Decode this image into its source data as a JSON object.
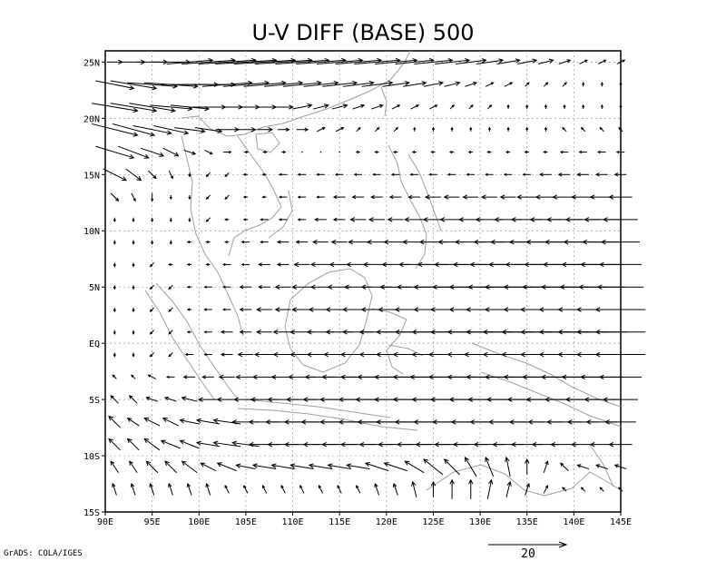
{
  "chart_data": {
    "type": "vector-field",
    "title": "U-V DIFF (BASE) 500",
    "x_axis": {
      "range": [
        90,
        145
      ],
      "ticks": [
        90,
        95,
        100,
        105,
        110,
        115,
        120,
        125,
        130,
        135,
        140,
        145
      ],
      "tick_labels": [
        "90E",
        "95E",
        "100E",
        "105E",
        "110E",
        "115E",
        "120E",
        "125E",
        "130E",
        "135E",
        "140E",
        "145E"
      ]
    },
    "y_axis": {
      "range": [
        -15,
        26
      ],
      "ticks": [
        -15,
        -10,
        -5,
        0,
        5,
        10,
        15,
        20,
        25
      ],
      "tick_labels": [
        "15S",
        "10S",
        "5S",
        "EQ",
        "5N",
        "10N",
        "15N",
        "20N",
        "25N"
      ]
    },
    "grid": true,
    "reference_vector": {
      "magnitude": 20,
      "label": "20"
    },
    "footer": "GrADS: COLA/IGES",
    "vectors_description": "Wind difference vectors on a 2° grid: strong westward flow south of ~15N (strongest east of 125E between 10N and 5S), weak flow over the Malay peninsula and Sumatra, strong eastward/northeastward flow north of 20N, southward/northwestward turning near 10S-15S.",
    "vector_rows": [
      {
        "lat": 25,
        "u": [
          4,
          6,
          8,
          10,
          12,
          14,
          15,
          16,
          16,
          15,
          14,
          13,
          12,
          12,
          12,
          11,
          10,
          10,
          9,
          8,
          7,
          6,
          5,
          4,
          3,
          2,
          2,
          2
        ],
        "v": [
          0,
          0,
          0,
          0,
          1,
          1,
          1,
          1,
          1,
          1,
          1,
          1,
          1,
          1,
          1,
          1,
          1,
          1,
          1,
          1,
          1,
          1,
          1,
          1,
          1,
          1,
          1,
          1
        ]
      },
      {
        "lat": 23,
        "u": [
          10,
          12,
          13,
          14,
          15,
          14,
          13,
          12,
          11,
          10,
          10,
          9,
          9,
          8,
          8,
          7,
          6,
          5,
          4,
          3,
          2,
          2,
          1,
          1,
          1,
          0,
          0,
          0
        ],
        "v": [
          -2,
          -2,
          -1,
          -1,
          0,
          0,
          1,
          1,
          1,
          1,
          1,
          1,
          1,
          1,
          1,
          1,
          1,
          1,
          1,
          1,
          1,
          1,
          1,
          1,
          1,
          1,
          1,
          1
        ]
      },
      {
        "lat": 21,
        "u": [
          12,
          12,
          12,
          11,
          10,
          9,
          8,
          7,
          6,
          5,
          5,
          4,
          4,
          3,
          3,
          2,
          2,
          2,
          1,
          1,
          1,
          0,
          0,
          0,
          0,
          0,
          0,
          0
        ],
        "v": [
          -2,
          -2,
          -2,
          -1,
          -1,
          0,
          0,
          0,
          0,
          0,
          1,
          1,
          1,
          1,
          1,
          1,
          1,
          1,
          1,
          1,
          1,
          1,
          1,
          1,
          1,
          1,
          1,
          1
        ]
      },
      {
        "lat": 19,
        "u": [
          12,
          11,
          10,
          9,
          8,
          7,
          6,
          5,
          4,
          3,
          3,
          2,
          2,
          1,
          1,
          1,
          0,
          0,
          0,
          0,
          0,
          0,
          0,
          0,
          -1,
          -1,
          -1,
          -1
        ],
        "v": [
          -3,
          -3,
          -2,
          -2,
          -1,
          -1,
          0,
          0,
          0,
          0,
          0,
          1,
          1,
          1,
          1,
          1,
          1,
          1,
          1,
          1,
          1,
          1,
          1,
          1,
          1,
          1,
          1,
          1
        ]
      },
      {
        "lat": 17,
        "u": [
          10,
          8,
          6,
          4,
          3,
          2,
          2,
          1,
          1,
          1,
          0,
          0,
          0,
          -1,
          -1,
          -1,
          -1,
          -1,
          -1,
          -1,
          -1,
          -1,
          -1,
          -1,
          -2,
          -2,
          -2,
          -2
        ],
        "v": [
          -3,
          -3,
          -2,
          -2,
          -1,
          -1,
          0,
          0,
          0,
          0,
          0,
          0,
          0,
          0,
          0,
          0,
          0,
          0,
          0,
          0,
          0,
          0,
          0,
          0,
          0,
          0,
          0,
          0
        ]
      },
      {
        "lat": 15,
        "u": [
          6,
          4,
          2,
          1,
          0,
          -1,
          -1,
          -1,
          -1,
          -2,
          -2,
          -2,
          -2,
          -2,
          -2,
          -2,
          -2,
          -2,
          -2,
          -2,
          -2,
          -2,
          -2,
          -3,
          -3,
          -3,
          -3,
          -3
        ],
        "v": [
          -3,
          -3,
          -2,
          -2,
          -1,
          -1,
          -1,
          0,
          0,
          0,
          0,
          0,
          0,
          0,
          0,
          0,
          0,
          0,
          0,
          0,
          0,
          0,
          0,
          0,
          0,
          0,
          0,
          0
        ]
      },
      {
        "lat": 13,
        "u": [
          2,
          1,
          0,
          0,
          0,
          -1,
          -1,
          -1,
          -1,
          -2,
          -2,
          -2,
          -3,
          -3,
          -3,
          -3,
          -3,
          -4,
          -4,
          -4,
          -4,
          -4,
          -5,
          -5,
          -6,
          -6,
          -6,
          -6
        ],
        "v": [
          -2,
          -2,
          -2,
          -1,
          -1,
          -1,
          -1,
          0,
          0,
          0,
          0,
          0,
          0,
          0,
          0,
          0,
          0,
          0,
          0,
          0,
          0,
          0,
          0,
          0,
          0,
          0,
          0,
          0
        ]
      },
      {
        "lat": 11,
        "u": [
          0,
          0,
          0,
          0,
          0,
          -1,
          -1,
          -1,
          -2,
          -2,
          -2,
          -3,
          -3,
          -4,
          -4,
          -4,
          -5,
          -5,
          -6,
          -6,
          -7,
          -7,
          -8,
          -8,
          -9,
          -9,
          -9,
          -9
        ],
        "v": [
          -1,
          -1,
          -1,
          -1,
          -1,
          -1,
          0,
          0,
          0,
          0,
          0,
          0,
          0,
          0,
          0,
          0,
          0,
          0,
          0,
          0,
          0,
          0,
          0,
          0,
          0,
          0,
          0,
          0
        ]
      },
      {
        "lat": 9,
        "u": [
          0,
          0,
          0,
          0,
          -1,
          -1,
          -1,
          -2,
          -2,
          -3,
          -3,
          -4,
          -4,
          -5,
          -5,
          -6,
          -6,
          -7,
          -7,
          -8,
          -8,
          -9,
          -9,
          -10,
          -10,
          -10,
          -10,
          -10
        ],
        "v": [
          -1,
          -1,
          -1,
          -1,
          0,
          0,
          0,
          0,
          0,
          0,
          0,
          0,
          0,
          0,
          0,
          0,
          0,
          0,
          0,
          0,
          0,
          0,
          0,
          0,
          0,
          0,
          0,
          0
        ]
      },
      {
        "lat": 7,
        "u": [
          0,
          0,
          -1,
          -1,
          -1,
          -1,
          -2,
          -2,
          -3,
          -3,
          -4,
          -5,
          -5,
          -6,
          -7,
          -7,
          -8,
          -8,
          -9,
          -9,
          -10,
          -10,
          -11,
          -11,
          -11,
          -11,
          -11,
          -11
        ],
        "v": [
          -1,
          -1,
          -1,
          0,
          0,
          0,
          0,
          0,
          0,
          0,
          0,
          0,
          0,
          0,
          0,
          0,
          0,
          0,
          0,
          0,
          0,
          0,
          0,
          0,
          0,
          0,
          0,
          0
        ]
      },
      {
        "lat": 5,
        "u": [
          0,
          0,
          -1,
          -1,
          -1,
          -2,
          -2,
          -3,
          -3,
          -4,
          -5,
          -5,
          -6,
          -7,
          -8,
          -8,
          -9,
          -10,
          -10,
          -11,
          -11,
          -12,
          -12,
          -12,
          -12,
          -12,
          -12,
          -12
        ],
        "v": [
          -1,
          -1,
          -1,
          -1,
          0,
          0,
          0,
          0,
          0,
          0,
          0,
          0,
          0,
          0,
          0,
          0,
          0,
          0,
          0,
          0,
          0,
          0,
          0,
          0,
          0,
          0,
          0,
          0
        ]
      },
      {
        "lat": 3,
        "u": [
          0,
          0,
          -1,
          -1,
          -1,
          -2,
          -2,
          -3,
          -4,
          -4,
          -5,
          -6,
          -7,
          -8,
          -8,
          -9,
          -10,
          -10,
          -11,
          -11,
          -12,
          -12,
          -12,
          -13,
          -13,
          -13,
          -13,
          -13
        ],
        "v": [
          -1,
          -1,
          -1,
          -1,
          0,
          0,
          0,
          0,
          0,
          0,
          0,
          0,
          0,
          0,
          0,
          0,
          0,
          0,
          0,
          0,
          0,
          0,
          0,
          0,
          0,
          0,
          0,
          0
        ]
      },
      {
        "lat": 1,
        "u": [
          0,
          0,
          -1,
          -1,
          -1,
          -2,
          -3,
          -3,
          -4,
          -5,
          -6,
          -7,
          -7,
          -8,
          -9,
          -10,
          -10,
          -11,
          -11,
          -12,
          -12,
          -13,
          -13,
          -13,
          -13,
          -13,
          -13,
          -13
        ],
        "v": [
          -1,
          -1,
          -1,
          -1,
          0,
          0,
          0,
          0,
          0,
          0,
          0,
          0,
          0,
          0,
          0,
          0,
          0,
          0,
          0,
          0,
          0,
          0,
          0,
          0,
          0,
          0,
          0,
          0
        ]
      },
      {
        "lat": -1,
        "u": [
          0,
          0,
          -1,
          -1,
          -2,
          -2,
          -3,
          -4,
          -5,
          -5,
          -6,
          -7,
          -8,
          -9,
          -9,
          -10,
          -11,
          -11,
          -12,
          -12,
          -13,
          -13,
          -13,
          -13,
          -13,
          -13,
          -13,
          -13
        ],
        "v": [
          -1,
          -1,
          -1,
          -1,
          0,
          0,
          0,
          0,
          0,
          0,
          0,
          0,
          0,
          0,
          0,
          0,
          0,
          0,
          0,
          0,
          0,
          0,
          0,
          0,
          0,
          0,
          0,
          0
        ]
      },
      {
        "lat": -3,
        "u": [
          -1,
          -1,
          -2,
          -2,
          -3,
          -3,
          -4,
          -5,
          -6,
          -6,
          -7,
          -8,
          -9,
          -9,
          -10,
          -11,
          -11,
          -12,
          -12,
          -12,
          -12,
          -12,
          -12,
          -12,
          -12,
          -11,
          -11,
          -11
        ],
        "v": [
          1,
          1,
          1,
          0,
          0,
          0,
          0,
          0,
          0,
          0,
          0,
          0,
          0,
          0,
          0,
          0,
          0,
          0,
          0,
          0,
          0,
          0,
          0,
          0,
          0,
          0,
          0,
          0
        ]
      },
      {
        "lat": -5,
        "u": [
          -2,
          -2,
          -3,
          -3,
          -4,
          -5,
          -5,
          -6,
          -7,
          -8,
          -8,
          -9,
          -10,
          -10,
          -11,
          -11,
          -11,
          -11,
          -11,
          -11,
          -11,
          -11,
          -10,
          -10,
          -10,
          -9,
          -9,
          -9
        ],
        "v": [
          2,
          2,
          1,
          1,
          1,
          0,
          0,
          0,
          0,
          0,
          0,
          0,
          0,
          0,
          0,
          0,
          0,
          0,
          0,
          0,
          0,
          0,
          0,
          0,
          0,
          0,
          0,
          0
        ]
      },
      {
        "lat": -7,
        "u": [
          -3,
          -3,
          -4,
          -4,
          -5,
          -6,
          -7,
          -7,
          -8,
          -9,
          -9,
          -10,
          -10,
          -10,
          -10,
          -10,
          -10,
          -10,
          -10,
          -10,
          -10,
          -10,
          -9,
          -9,
          -9,
          -8,
          -8,
          -8
        ],
        "v": [
          3,
          2,
          2,
          2,
          1,
          1,
          1,
          0,
          0,
          0,
          0,
          0,
          0,
          0,
          0,
          0,
          0,
          0,
          0,
          0,
          0,
          0,
          0,
          0,
          0,
          0,
          0,
          0
        ]
      },
      {
        "lat": -9,
        "u": [
          -3,
          -3,
          -4,
          -5,
          -5,
          -6,
          -7,
          -7,
          -8,
          -8,
          -9,
          -9,
          -9,
          -9,
          -9,
          -9,
          -9,
          -9,
          -9,
          -9,
          -8,
          -8,
          -8,
          -7,
          -7,
          -6,
          -6,
          -6
        ],
        "v": [
          3,
          3,
          3,
          2,
          2,
          1,
          1,
          1,
          0,
          0,
          0,
          0,
          0,
          0,
          0,
          0,
          0,
          0,
          0,
          0,
          0,
          0,
          0,
          0,
          0,
          0,
          0,
          0
        ]
      },
      {
        "lat": -11,
        "u": [
          -2,
          -2,
          -3,
          -3,
          -4,
          -4,
          -5,
          -5,
          -6,
          -6,
          -6,
          -6,
          -6,
          -6,
          -6,
          -6,
          -5,
          -5,
          -4,
          -3,
          -2,
          -1,
          0,
          1,
          -2,
          -3,
          -3,
          -3
        ],
        "v": [
          3,
          3,
          3,
          3,
          3,
          2,
          2,
          1,
          1,
          1,
          1,
          1,
          1,
          1,
          2,
          2,
          3,
          4,
          4,
          5,
          5,
          5,
          4,
          3,
          2,
          1,
          1,
          1
        ]
      },
      {
        "lat": -13,
        "u": [
          -1,
          -1,
          -1,
          -1,
          -1,
          -1,
          -1,
          -1,
          -1,
          -1,
          -1,
          -1,
          -1,
          -1,
          -1,
          -1,
          -1,
          0,
          0,
          0,
          1,
          1,
          1,
          1,
          -1,
          -1,
          -1,
          -1
        ],
        "v": [
          3,
          3,
          3,
          3,
          3,
          3,
          2,
          2,
          2,
          2,
          2,
          2,
          2,
          2,
          3,
          3,
          4,
          4,
          5,
          5,
          5,
          4,
          3,
          2,
          1,
          1,
          1,
          1
        ]
      }
    ]
  }
}
